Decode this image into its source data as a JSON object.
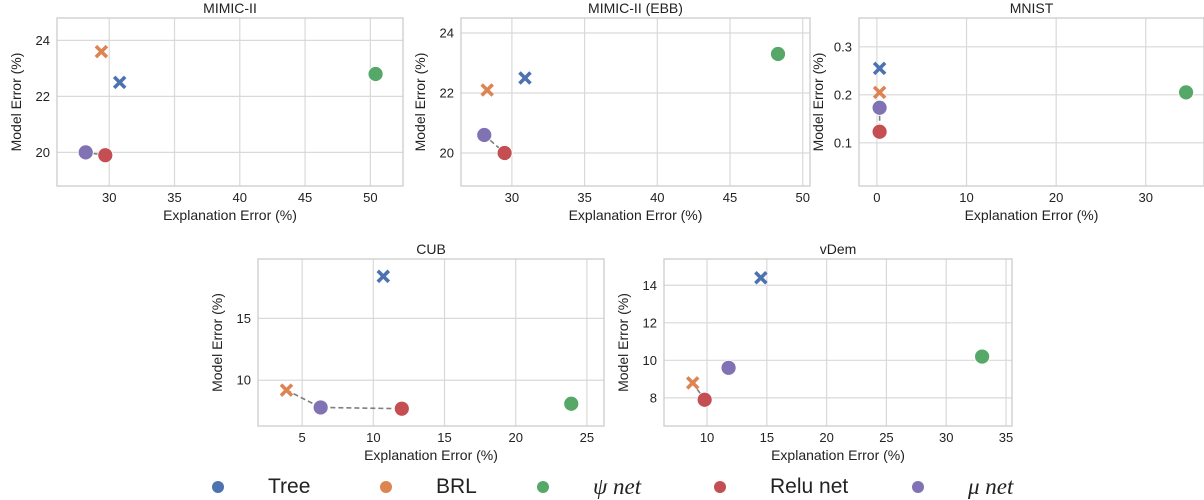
{
  "chart_data": [
    {
      "type": "scatter",
      "title": "MIMIC-II",
      "xlabel": "Explanation Error (%)",
      "ylabel": "Model Error (%)",
      "xlim": [
        26,
        52.5
      ],
      "ylim": [
        18.8,
        24.8
      ],
      "xticks": [
        30,
        35,
        40,
        45,
        50
      ],
      "yticks": [
        20,
        22,
        24
      ],
      "grid": true,
      "points": [
        {
          "series": "Tree",
          "marker": "x",
          "x": 30.8,
          "y": 22.5
        },
        {
          "series": "BRL",
          "marker": "x",
          "x": 29.4,
          "y": 23.6
        },
        {
          "series": "psi",
          "marker": "o",
          "x": 50.4,
          "y": 22.8
        },
        {
          "series": "relu",
          "marker": "o",
          "x": 29.7,
          "y": 19.9
        },
        {
          "series": "mu",
          "marker": "o",
          "x": 28.2,
          "y": 20.0
        }
      ],
      "pareto": [
        [
          28.2,
          20.0
        ],
        [
          29.7,
          19.9
        ]
      ]
    },
    {
      "type": "scatter",
      "title": "MIMIC-II (EBB)",
      "xlabel": "Explanation Error (%)",
      "ylabel": "Model Error (%)",
      "xlim": [
        26.5,
        50.5
      ],
      "ylim": [
        18.9,
        24.5
      ],
      "xticks": [
        30,
        35,
        40,
        45,
        50
      ],
      "yticks": [
        20,
        22,
        24
      ],
      "grid": true,
      "points": [
        {
          "series": "Tree",
          "marker": "x",
          "x": 30.9,
          "y": 22.5
        },
        {
          "series": "BRL",
          "marker": "x",
          "x": 28.3,
          "y": 22.1
        },
        {
          "series": "psi",
          "marker": "o",
          "x": 48.3,
          "y": 23.3
        },
        {
          "series": "relu",
          "marker": "o",
          "x": 29.5,
          "y": 20.0
        },
        {
          "series": "mu",
          "marker": "o",
          "x": 28.1,
          "y": 20.6
        }
      ],
      "pareto": [
        [
          28.1,
          20.6
        ],
        [
          29.5,
          20.0
        ]
      ]
    },
    {
      "type": "scatter",
      "title": "MNIST",
      "xlabel": "Explanation Error (%)",
      "ylabel": "Model Error (%)",
      "xlim": [
        -2,
        36.5
      ],
      "ylim": [
        0.01,
        0.36
      ],
      "xticks": [
        0,
        10,
        20,
        30
      ],
      "yticks": [
        0.1,
        0.2,
        0.3
      ],
      "grid": true,
      "points": [
        {
          "series": "Tree",
          "marker": "x",
          "x": 0.3,
          "y": 0.255
        },
        {
          "series": "BRL",
          "marker": "x",
          "x": 0.3,
          "y": 0.205
        },
        {
          "series": "psi",
          "marker": "o",
          "x": 34.5,
          "y": 0.205
        },
        {
          "series": "relu",
          "marker": "o",
          "x": 0.3,
          "y": 0.123
        },
        {
          "series": "mu",
          "marker": "o",
          "x": 0.3,
          "y": 0.173
        }
      ],
      "pareto": [
        [
          0.3,
          0.173
        ],
        [
          0.3,
          0.123
        ]
      ]
    },
    {
      "type": "scatter",
      "title": "CUB",
      "xlabel": "Explanation Error (%)",
      "ylabel": "Model Error (%)",
      "xlim": [
        1.9,
        26.2
      ],
      "ylim": [
        6.3,
        19.8
      ],
      "xticks": [
        5,
        10,
        15,
        20,
        25
      ],
      "yticks": [
        10,
        15
      ],
      "grid": true,
      "points": [
        {
          "series": "Tree",
          "marker": "x",
          "x": 10.7,
          "y": 18.4
        },
        {
          "series": "BRL",
          "marker": "x",
          "x": 3.9,
          "y": 9.2
        },
        {
          "series": "psi",
          "marker": "o",
          "x": 23.9,
          "y": 8.1
        },
        {
          "series": "relu",
          "marker": "o",
          "x": 12.0,
          "y": 7.7
        },
        {
          "series": "mu",
          "marker": "o",
          "x": 6.3,
          "y": 7.8
        }
      ],
      "pareto": [
        [
          3.9,
          9.2
        ],
        [
          6.3,
          7.8
        ],
        [
          12.0,
          7.7
        ]
      ]
    },
    {
      "type": "scatter",
      "title": "vDem",
      "xlabel": "Explanation Error (%)",
      "ylabel": "Model Error (%)",
      "xlim": [
        6.4,
        35.5
      ],
      "ylim": [
        6.5,
        15.4
      ],
      "xticks": [
        10,
        15,
        20,
        25,
        30,
        35
      ],
      "yticks": [
        8,
        10,
        12,
        14
      ],
      "grid": true,
      "points": [
        {
          "series": "Tree",
          "marker": "x",
          "x": 14.5,
          "y": 14.4
        },
        {
          "series": "BRL",
          "marker": "x",
          "x": 8.8,
          "y": 8.8
        },
        {
          "series": "psi",
          "marker": "o",
          "x": 33.0,
          "y": 10.2
        },
        {
          "series": "relu",
          "marker": "o",
          "x": 9.8,
          "y": 7.9
        },
        {
          "series": "mu",
          "marker": "o",
          "x": 11.8,
          "y": 9.6
        }
      ],
      "pareto": [
        [
          8.8,
          8.8
        ],
        [
          9.8,
          7.9
        ]
      ]
    }
  ],
  "legend": {
    "placement": "bottom",
    "items": [
      {
        "id": "Tree",
        "label": "Tree",
        "color": "#4c72b0",
        "italic": false
      },
      {
        "id": "BRL",
        "label": "BRL",
        "color": "#dd8452",
        "italic": false
      },
      {
        "id": "psi",
        "label": "ψ net",
        "color": "#55a868",
        "italic": true
      },
      {
        "id": "relu",
        "label": "Relu net",
        "color": "#c44e52",
        "italic": false
      },
      {
        "id": "mu",
        "label": "μ net",
        "color": "#8172b3",
        "italic": true
      }
    ]
  },
  "colors": {
    "Tree": "#4c72b0",
    "BRL": "#dd8452",
    "psi": "#55a868",
    "relu": "#c44e52",
    "mu": "#8172b3",
    "grid": "#d9d9d9",
    "frame": "#cfcfcf",
    "pareto": "#7f7f7f",
    "text": "#222222"
  }
}
